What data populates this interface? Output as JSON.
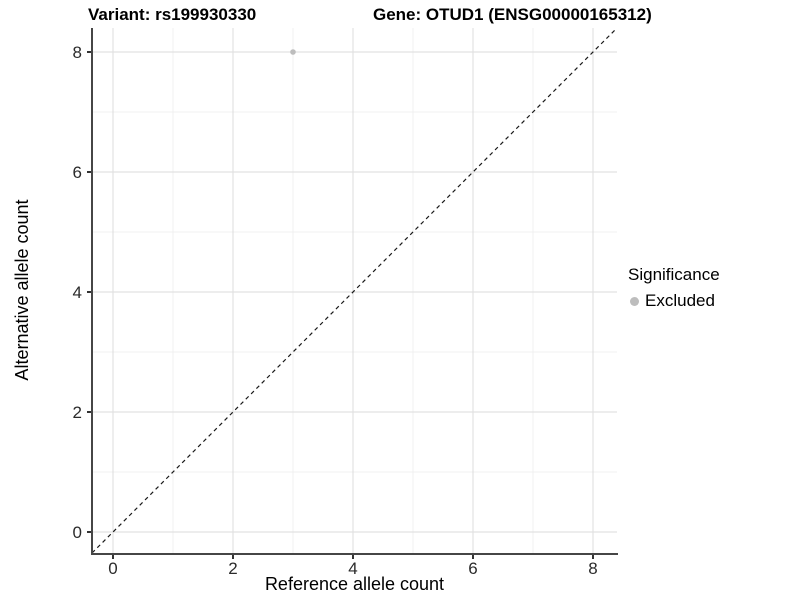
{
  "header": {
    "variant_title": "Variant: rs199930330",
    "gene_title": "Gene: OTUD1 (ENSG00000165312)"
  },
  "legend": {
    "title": "Significance",
    "items": [
      {
        "label": "Excluded",
        "color": "#bdbdbd"
      }
    ]
  },
  "chart_data": {
    "type": "scatter",
    "title": "Variant: rs199930330 — Gene: OTUD1 (ENSG00000165312)",
    "xlabel": "Reference allele count",
    "ylabel": "Alternative allele count",
    "xlim": [
      -0.35,
      8.4
    ],
    "ylim": [
      -0.35,
      8.4
    ],
    "x_ticks": [
      0,
      2,
      4,
      6,
      8
    ],
    "y_ticks": [
      0,
      2,
      4,
      6,
      8
    ],
    "minor_gridlines": [
      1,
      3,
      5,
      7
    ],
    "grid": true,
    "legend_position": "right",
    "series": [
      {
        "name": "Excluded",
        "color": "#bdbdbd",
        "points": [
          {
            "x": 3,
            "y": 8
          }
        ]
      }
    ],
    "reference_line": {
      "style": "dashed",
      "slope": 1,
      "intercept": 0,
      "color": "#1a1a1a"
    },
    "theme": {
      "gridline_major": "#e2e2e2",
      "gridline_minor": "#f0f0f0",
      "axis_line": "#464646",
      "point_radius": 2.8
    }
  }
}
